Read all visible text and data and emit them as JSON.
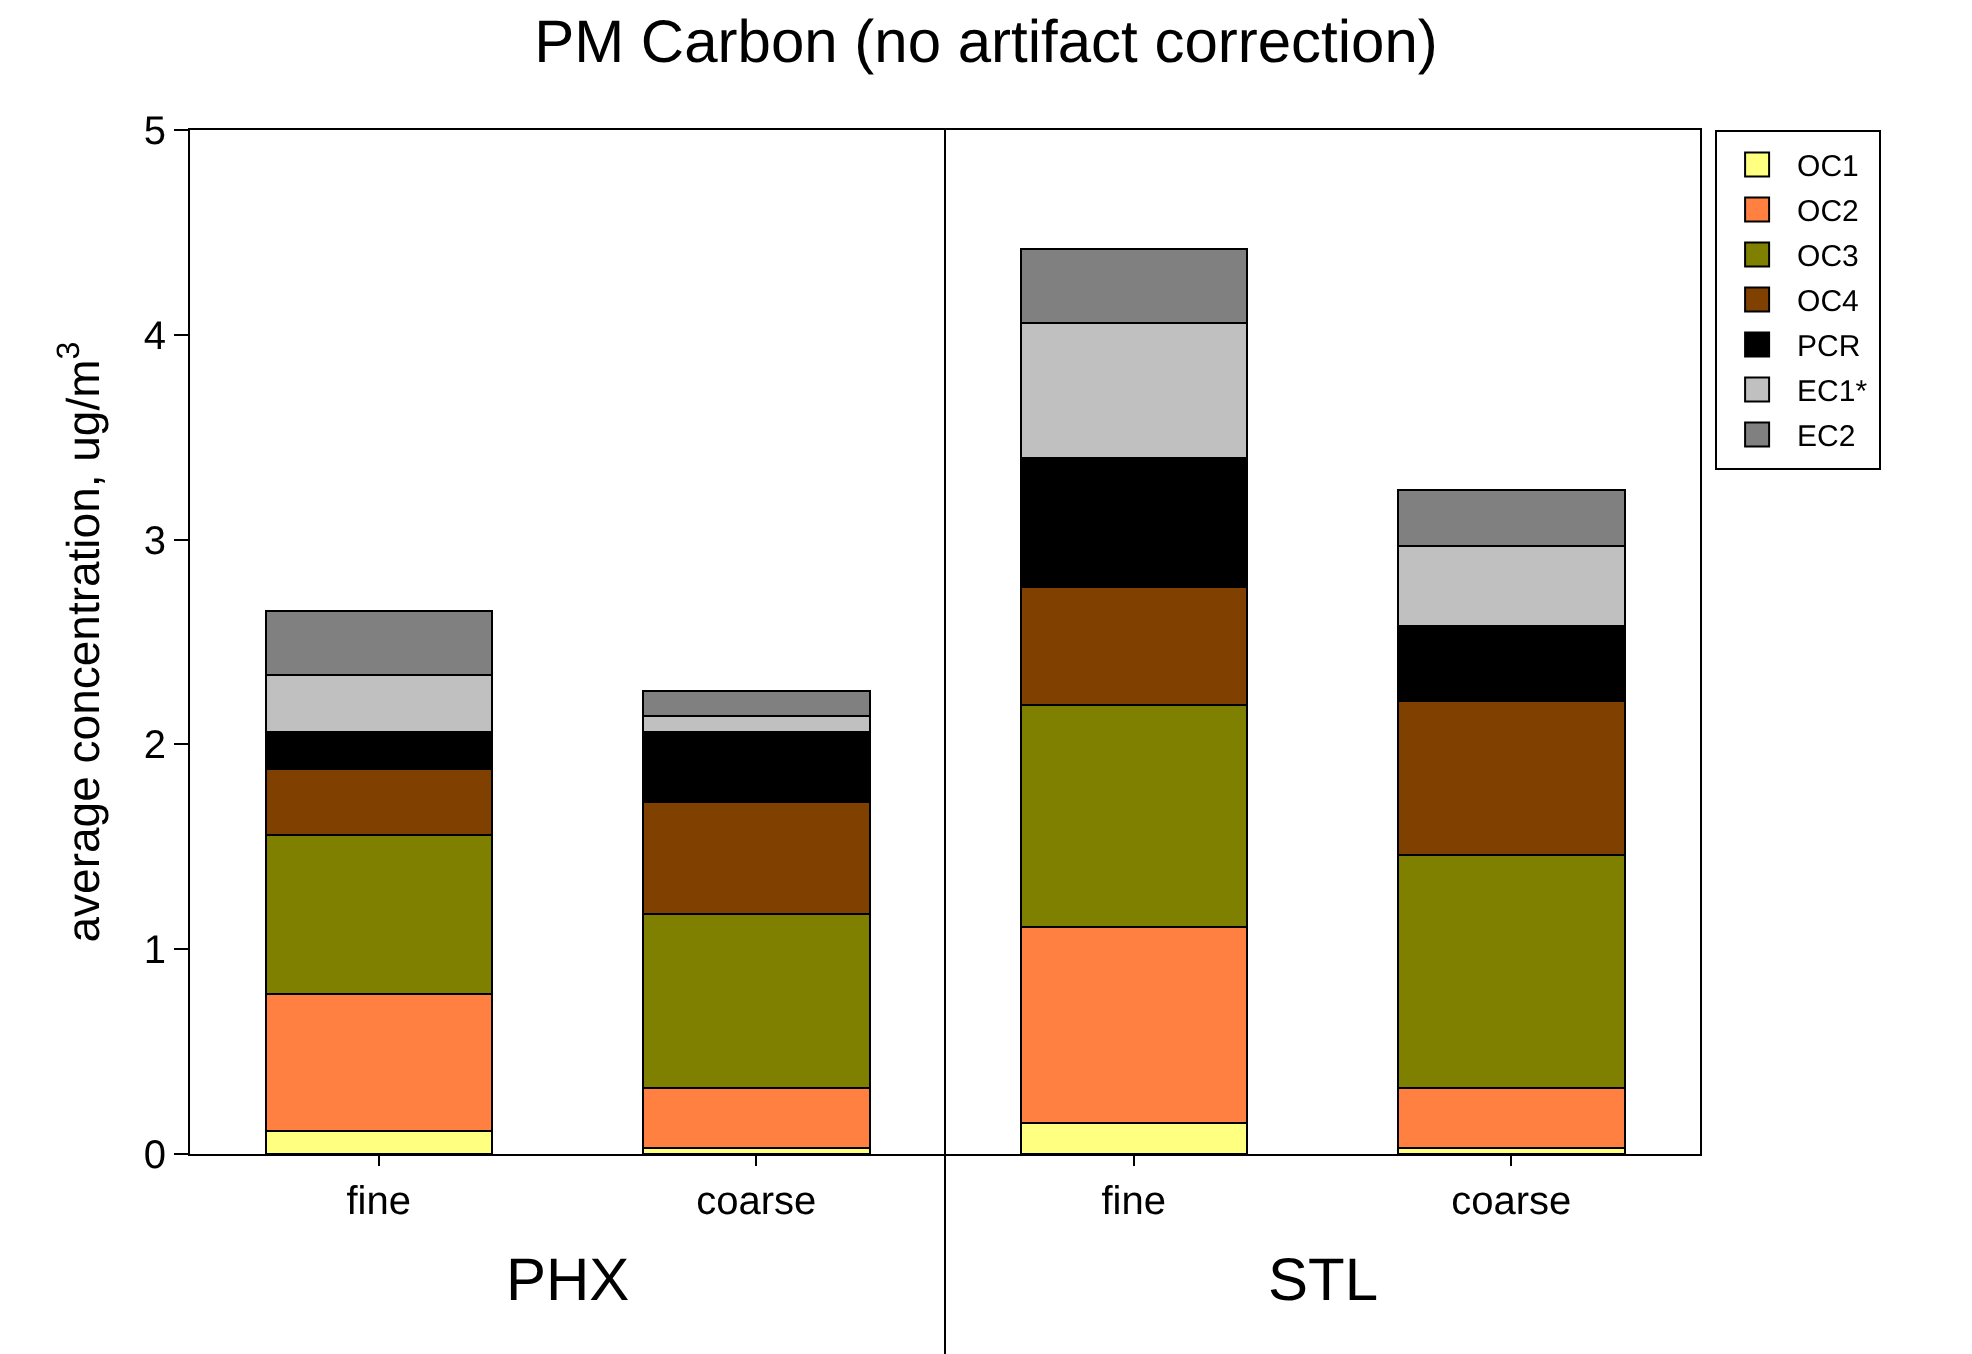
{
  "chart_data": {
    "type": "bar",
    "title": "PM Carbon (no artifact correction)",
    "ylabel": "average concentration, ug/m$^{3}$",
    "categories": [
      "fine",
      "coarse",
      "fine",
      "coarse"
    ],
    "annotations": [
      "PHX",
      "STL"
    ],
    "stacked": true,
    "legend": "top right",
    "grid": false,
    "ylim": [
      0,
      5
    ],
    "yticks": [
      0,
      1,
      2,
      3,
      4,
      5
    ],
    "series": [
      {
        "name": "OC1",
        "color": "#ffff80",
        "values": [
          0.11,
          0.03,
          0.15,
          0.03
        ]
      },
      {
        "name": "OC2",
        "color": "#ff8040",
        "values": [
          0.67,
          0.29,
          0.96,
          0.29
        ]
      },
      {
        "name": "OC3",
        "color": "#808000",
        "values": [
          0.78,
          0.85,
          1.08,
          1.14
        ]
      },
      {
        "name": "OC4",
        "color": "#804000",
        "values": [
          0.32,
          0.55,
          0.58,
          0.75
        ]
      },
      {
        "name": "PCR",
        "color": "#000000",
        "values": [
          0.18,
          0.34,
          0.63,
          0.37
        ]
      },
      {
        "name": "EC1*",
        "color": "#c0c0c0",
        "values": [
          0.28,
          0.08,
          0.66,
          0.39
        ]
      },
      {
        "name": "EC2",
        "color": "#808080",
        "values": [
          0.31,
          0.12,
          0.36,
          0.27
        ]
      }
    ]
  }
}
